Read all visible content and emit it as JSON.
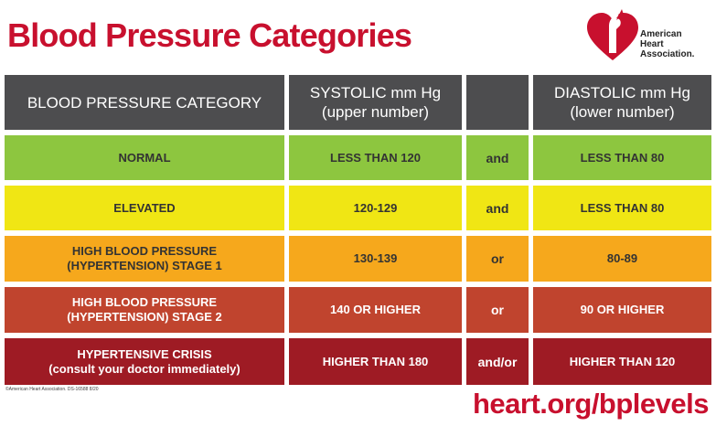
{
  "header": {
    "title": "Blood Pressure Categories",
    "logo": [
      "American",
      "Heart",
      "Association."
    ]
  },
  "table": {
    "columns": [
      [
        "BLOOD PRESSURE CATEGORY"
      ],
      [
        "SYSTOLIC mm Hg",
        "(upper number)"
      ],
      [
        "DIASTOLIC mm Hg",
        "(lower number)"
      ]
    ],
    "rows": [
      {
        "category": [
          "NORMAL"
        ],
        "systolic": "LESS THAN 120",
        "connector": "and",
        "diastolic": "LESS THAN 80",
        "color": "#8dc63f",
        "text_color": "#333333"
      },
      {
        "category": [
          "ELEVATED"
        ],
        "systolic": "120-129",
        "connector": "and",
        "diastolic": "LESS THAN 80",
        "color": "#f0e614",
        "text_color": "#333333"
      },
      {
        "category": [
          "HIGH BLOOD PRESSURE",
          "(HYPERTENSION) STAGE 1"
        ],
        "systolic": "130-139",
        "connector": "or",
        "diastolic": "80-89",
        "color": "#f6a81c",
        "text_color": "#333333"
      },
      {
        "category": [
          "HIGH BLOOD PRESSURE",
          "(HYPERTENSION) STAGE 2"
        ],
        "systolic": "140 OR HIGHER",
        "connector": "or",
        "diastolic": "90 OR HIGHER",
        "color": "#c0442e",
        "text_color": "#ffffff"
      },
      {
        "category": [
          "HYPERTENSIVE CRISIS",
          "(consult your doctor immediately)"
        ],
        "systolic": "HIGHER THAN 180",
        "connector": "and/or",
        "diastolic": "HIGHER THAN 120",
        "color": "#9e1b24",
        "text_color": "#ffffff"
      }
    ]
  },
  "footer": {
    "copyright": "©American Heart Association. DS-16588 8/20",
    "url": "heart.org/bplevels"
  }
}
